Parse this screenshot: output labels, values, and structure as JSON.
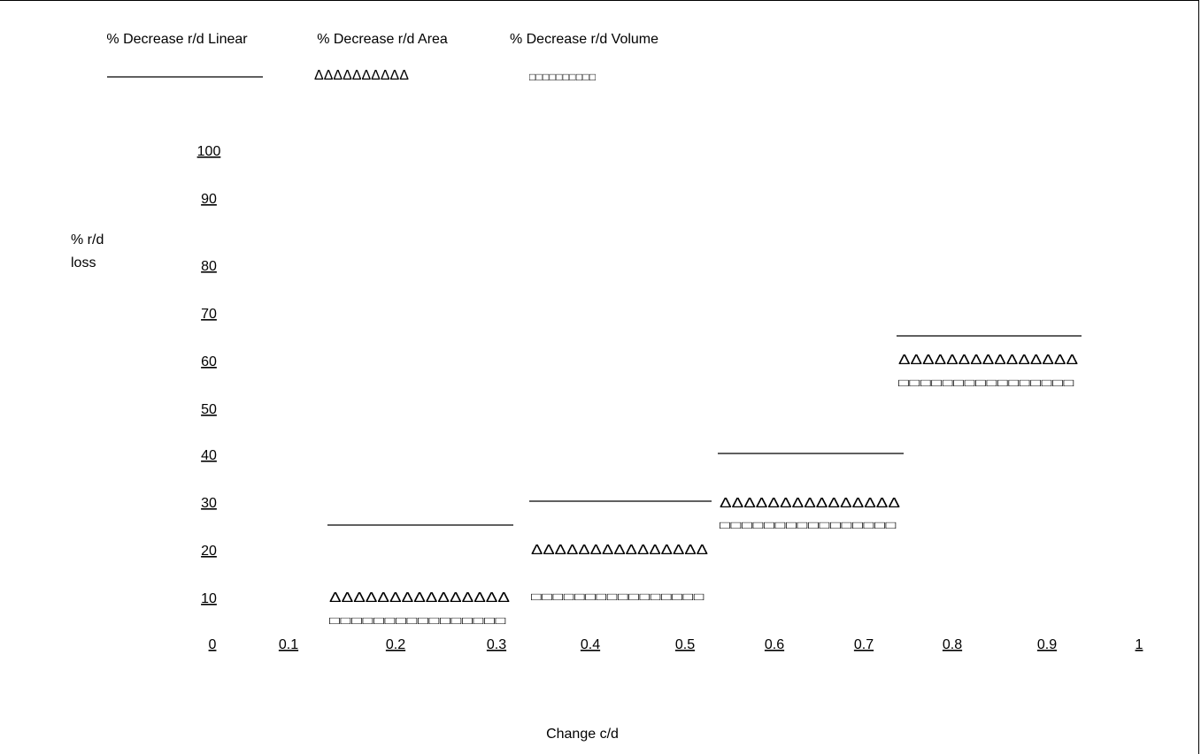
{
  "chart_data": {
    "type": "line",
    "title": "",
    "xlabel": "Change c/d",
    "ylabel_lines": [
      "% r/d",
      "loss"
    ],
    "xlim": [
      0,
      1
    ],
    "ylim": [
      0,
      100
    ],
    "x_ticks": [
      "0",
      "0.1",
      "0.2",
      "0.3",
      "0.4",
      "0.5",
      "0.6",
      "0.7",
      "0.8",
      "0.9",
      "1"
    ],
    "y_ticks": [
      "100",
      "90",
      "80",
      "70",
      "60",
      "50",
      "40",
      "30",
      "20",
      "10"
    ],
    "legend": {
      "placement": "top",
      "entries": [
        {
          "name": "% Decrease r/d Linear",
          "marker": "line"
        },
        {
          "name": "% Decrease r/d Area",
          "marker": "ΔΔΔΔΔΔΔΔΔΔ"
        },
        {
          "name": "% Decrease r/d Volume",
          "marker": "□□□□□□□□□□"
        }
      ]
    },
    "series": [
      {
        "name": "% Decrease r/d Linear",
        "style": "line",
        "segments": [
          {
            "x0": 0.125,
            "x1": 0.3125,
            "y": 25
          },
          {
            "x0": 0.3375,
            "x1": 0.5,
            "y": 30
          },
          {
            "x0": 0.525,
            "x1": 0.71,
            "y": 40
          },
          {
            "x0": 0.71,
            "x1": 0.905,
            "y": 65
          }
        ]
      },
      {
        "name": "% Decrease r/d Area",
        "style": "triangles",
        "segments": [
          {
            "x0": 0.125,
            "x1": 0.3125,
            "y": 10,
            "label": "ΔΔΔΔΔΔΔΔΔΔΔΔΔΔΔ"
          },
          {
            "x0": 0.3375,
            "x1": 0.5125,
            "y": 20,
            "label": "ΔΔΔΔΔΔΔΔΔΔΔΔΔΔΔ"
          },
          {
            "x0": 0.525,
            "x1": 0.71,
            "y": 30,
            "label": "ΔΔΔΔΔΔΔΔΔΔΔΔΔΔΔ"
          },
          {
            "x0": 0.71,
            "x1": 0.905,
            "y": 60,
            "label": "ΔΔΔΔΔΔΔΔΔΔΔΔΔΔΔ"
          }
        ]
      },
      {
        "name": "% Decrease r/d Volume",
        "style": "squares",
        "segments": [
          {
            "x0": 0.125,
            "x1": 0.3125,
            "y": 5,
            "label": "□□□□□□□□□□□□□□□□"
          },
          {
            "x0": 0.3375,
            "x1": 0.5125,
            "y": 10,
            "label": "□□□□□□□□□□□□□□□□"
          },
          {
            "x0": 0.525,
            "x1": 0.71,
            "y": 25,
            "label": "□□□□□□□□□□□□□□□□"
          },
          {
            "x0": 0.71,
            "x1": 0.905,
            "y": 55,
            "label": "□□□□□□□□□□□□□□□□"
          }
        ]
      }
    ],
    "grid": false
  }
}
